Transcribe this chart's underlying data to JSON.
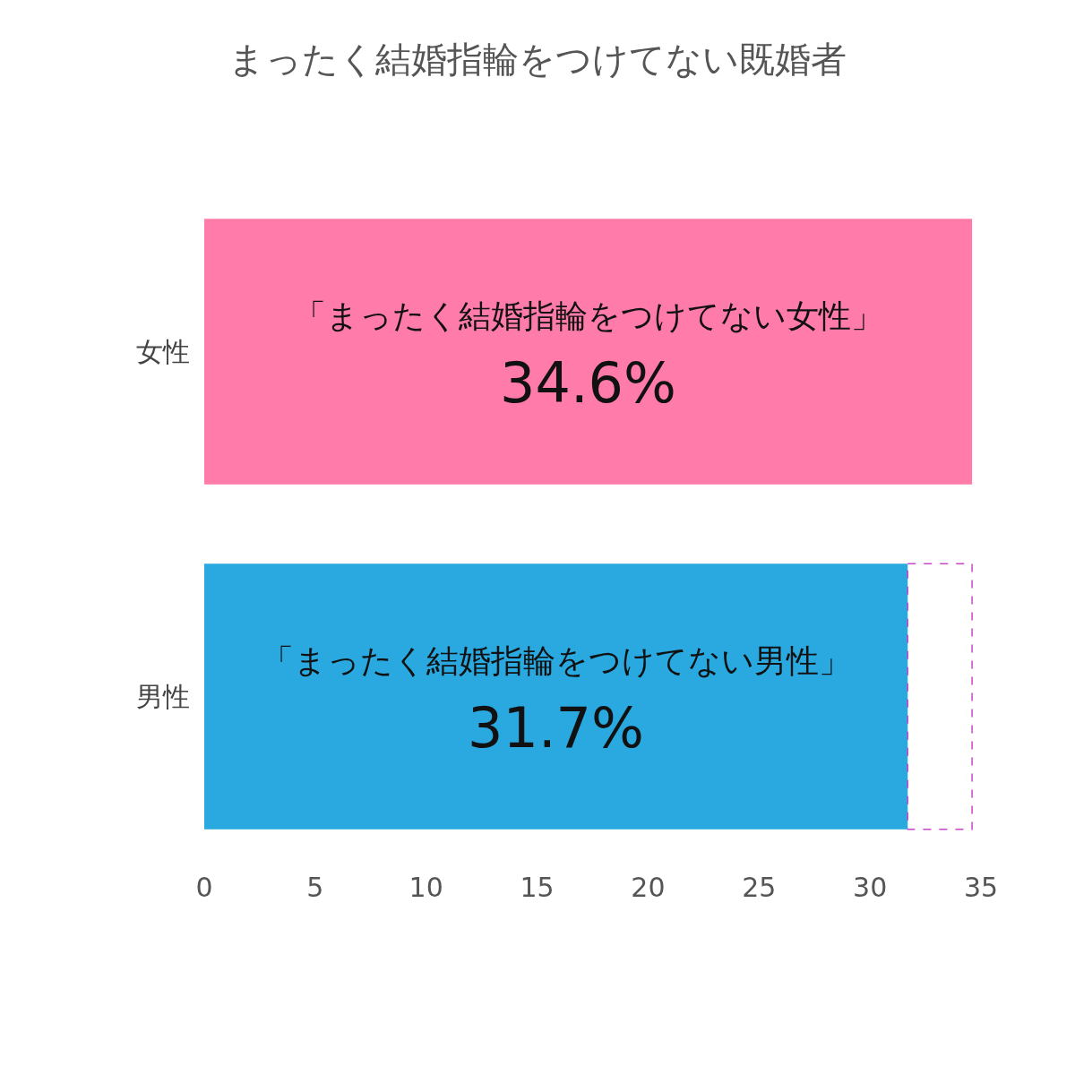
{
  "chart_data": {
    "type": "bar",
    "orientation": "horizontal",
    "title": "まったく結婚指輪をつけてない既婚者",
    "categories": [
      "女性",
      "男性"
    ],
    "values": [
      34.6,
      31.7
    ],
    "colors": [
      "#ff7ba9",
      "#29a9e0"
    ],
    "value_labels": [
      "「まったく結婚指輪をつけてない女性」\n34.6%",
      "「まったく結婚指輪をつけてない男性」\n31.7%"
    ],
    "xlim": [
      0,
      35
    ],
    "xticks": [
      0,
      5,
      10,
      15,
      20,
      25,
      30,
      35
    ]
  }
}
